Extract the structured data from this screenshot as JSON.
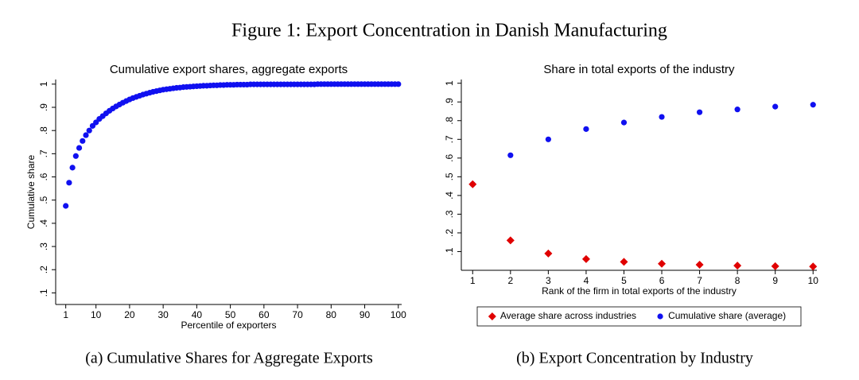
{
  "figure_title": "Figure 1: Export Concentration in Danish Manufacturing",
  "chart_data": [
    {
      "type": "scatter",
      "title": "Cumulative export shares, aggregate exports",
      "xlabel": "Percentile of exporters",
      "ylabel": "Cumulative share",
      "x": [
        1,
        2,
        3,
        4,
        5,
        6,
        7,
        8,
        9,
        10,
        11,
        12,
        13,
        14,
        15,
        16,
        17,
        18,
        19,
        20,
        21,
        22,
        23,
        24,
        25,
        26,
        27,
        28,
        29,
        30,
        31,
        32,
        33,
        34,
        35,
        36,
        37,
        38,
        39,
        40,
        41,
        42,
        43,
        44,
        45,
        46,
        47,
        48,
        49,
        50,
        51,
        52,
        53,
        54,
        55,
        56,
        57,
        58,
        59,
        60,
        61,
        62,
        63,
        64,
        65,
        66,
        67,
        68,
        69,
        70,
        71,
        72,
        73,
        74,
        75,
        76,
        77,
        78,
        79,
        80,
        81,
        82,
        83,
        84,
        85,
        86,
        87,
        88,
        89,
        90,
        91,
        92,
        93,
        94,
        95,
        96,
        97,
        98,
        99,
        100
      ],
      "series": [
        {
          "color": "#1010f0",
          "marker": "circle",
          "values": [
            0.475,
            0.575,
            0.64,
            0.69,
            0.725,
            0.755,
            0.78,
            0.8,
            0.82,
            0.835,
            0.85,
            0.862,
            0.874,
            0.885,
            0.895,
            0.904,
            0.912,
            0.92,
            0.927,
            0.934,
            0.94,
            0.945,
            0.95,
            0.955,
            0.959,
            0.963,
            0.967,
            0.97,
            0.973,
            0.976,
            0.978,
            0.98,
            0.982,
            0.984,
            0.985,
            0.987,
            0.988,
            0.989,
            0.99,
            0.991,
            0.992,
            0.993,
            0.993,
            0.994,
            0.995,
            0.995,
            0.996,
            0.996,
            0.997,
            0.997,
            0.997,
            0.998,
            0.998,
            0.998,
            0.998,
            0.999,
            0.999,
            0.999,
            0.999,
            0.999,
            0.999,
            0.999,
            0.999,
            0.999,
            0.999,
            0.999,
            0.999,
            0.999,
            0.999,
            0.999,
            0.999,
            0.999,
            0.999,
            0.999,
            0.999,
            1,
            1,
            1,
            1,
            1,
            1,
            1,
            1,
            1,
            1,
            1,
            1,
            1,
            1,
            1,
            1,
            1,
            1,
            1,
            1,
            1,
            1,
            1,
            1,
            1
          ]
        }
      ],
      "xlim": [
        -2,
        101
      ],
      "xticks": [
        1,
        10,
        20,
        30,
        40,
        50,
        60,
        70,
        80,
        90,
        100
      ],
      "ylim": [
        0.05,
        1.02
      ],
      "yticks": [
        {
          "value": 0.1,
          "label": ".1"
        },
        {
          "value": 0.2,
          "label": ".2"
        },
        {
          "value": 0.3,
          "label": ".3"
        },
        {
          "value": 0.4,
          "label": ".4"
        },
        {
          "value": 0.5,
          "label": ".5"
        },
        {
          "value": 0.6,
          "label": ".6"
        },
        {
          "value": 0.7,
          "label": ".7"
        },
        {
          "value": 0.8,
          "label": ".8"
        },
        {
          "value": 0.9,
          "label": ".9"
        },
        1
      ]
    },
    {
      "type": "scatter",
      "title": "Share in total exports of the industry",
      "xlabel": "Rank of the firm in total exports of the industry",
      "x": [
        1,
        2,
        3,
        4,
        5,
        6,
        7,
        8,
        9,
        10
      ],
      "series": [
        {
          "name": "Average share across industries",
          "color": "#e00000",
          "marker": "diamond",
          "values": [
            0.46,
            0.16,
            0.09,
            0.06,
            0.045,
            0.035,
            0.03,
            0.025,
            0.022,
            0.02
          ]
        },
        {
          "name": "Cumulative share (average)",
          "color": "#1010f0",
          "marker": "circle",
          "values": [
            0.46,
            0.615,
            0.7,
            0.755,
            0.79,
            0.82,
            0.845,
            0.86,
            0.875,
            0.885
          ]
        }
      ],
      "xlim": [
        0.7,
        10.1
      ],
      "xticks": [
        1,
        2,
        3,
        4,
        5,
        6,
        7,
        8,
        9,
        10
      ],
      "ylim": [
        0,
        1.02
      ],
      "yticks": [
        {
          "value": 0.1,
          "label": ".1"
        },
        {
          "value": 0.2,
          "label": ".2"
        },
        {
          "value": 0.3,
          "label": ".3"
        },
        {
          "value": 0.4,
          "label": ".4"
        },
        {
          "value": 0.5,
          "label": ".5"
        },
        {
          "value": 0.6,
          "label": ".6"
        },
        {
          "value": 0.7,
          "label": ".7"
        },
        {
          "value": 0.8,
          "label": ".8"
        },
        {
          "value": 0.9,
          "label": ".9"
        },
        1
      ],
      "legend": "bottom"
    }
  ],
  "captions": [
    "(a) Cumulative Shares for Aggregate Exports",
    "(b) Export Concentration by Industry"
  ]
}
